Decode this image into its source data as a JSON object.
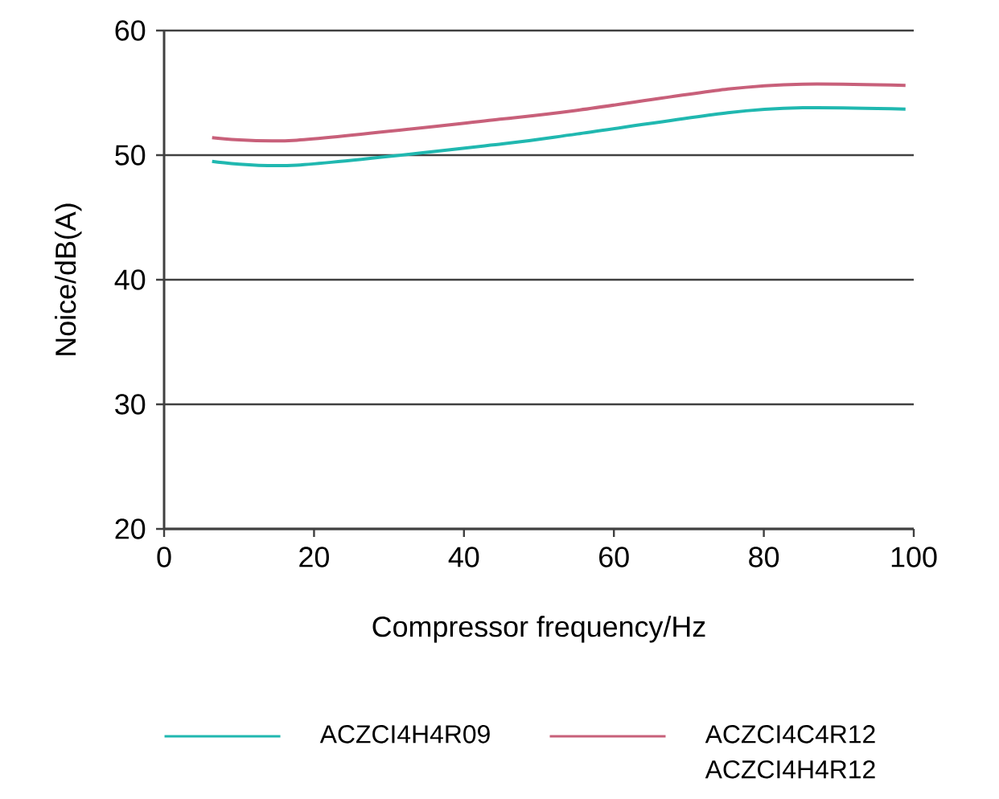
{
  "chart_data": {
    "type": "line",
    "xlabel": "Compressor frequency/Hz",
    "ylabel": "Noice/dB(A)",
    "xlim": [
      0,
      100
    ],
    "xticks": [
      0,
      20,
      40,
      60,
      80,
      100
    ],
    "ylim": [
      20,
      60
    ],
    "yticks": [
      20,
      30,
      40,
      50,
      60
    ],
    "grid": "y",
    "legend": "bottom",
    "marker": "none",
    "line_style": "solid",
    "series": [
      {
        "name": "ACZCI4H4R09",
        "color": "#20b8b0",
        "x": [
          6.4,
          17.7,
          45.1,
          55.1,
          75.2,
          85.2,
          98.9
        ],
        "values": [
          49.5,
          49.2,
          50.9,
          51.7,
          53.4,
          53.8,
          53.7
        ]
      },
      {
        "name": "ACZCI4C4R12 ACZCI4H4R12",
        "color": "#c8607a",
        "x": [
          6.4,
          17.7,
          45.1,
          55.1,
          75.2,
          85.2,
          98.9
        ],
        "values": [
          51.4,
          51.2,
          52.9,
          53.6,
          55.3,
          55.7,
          55.6
        ]
      }
    ]
  }
}
